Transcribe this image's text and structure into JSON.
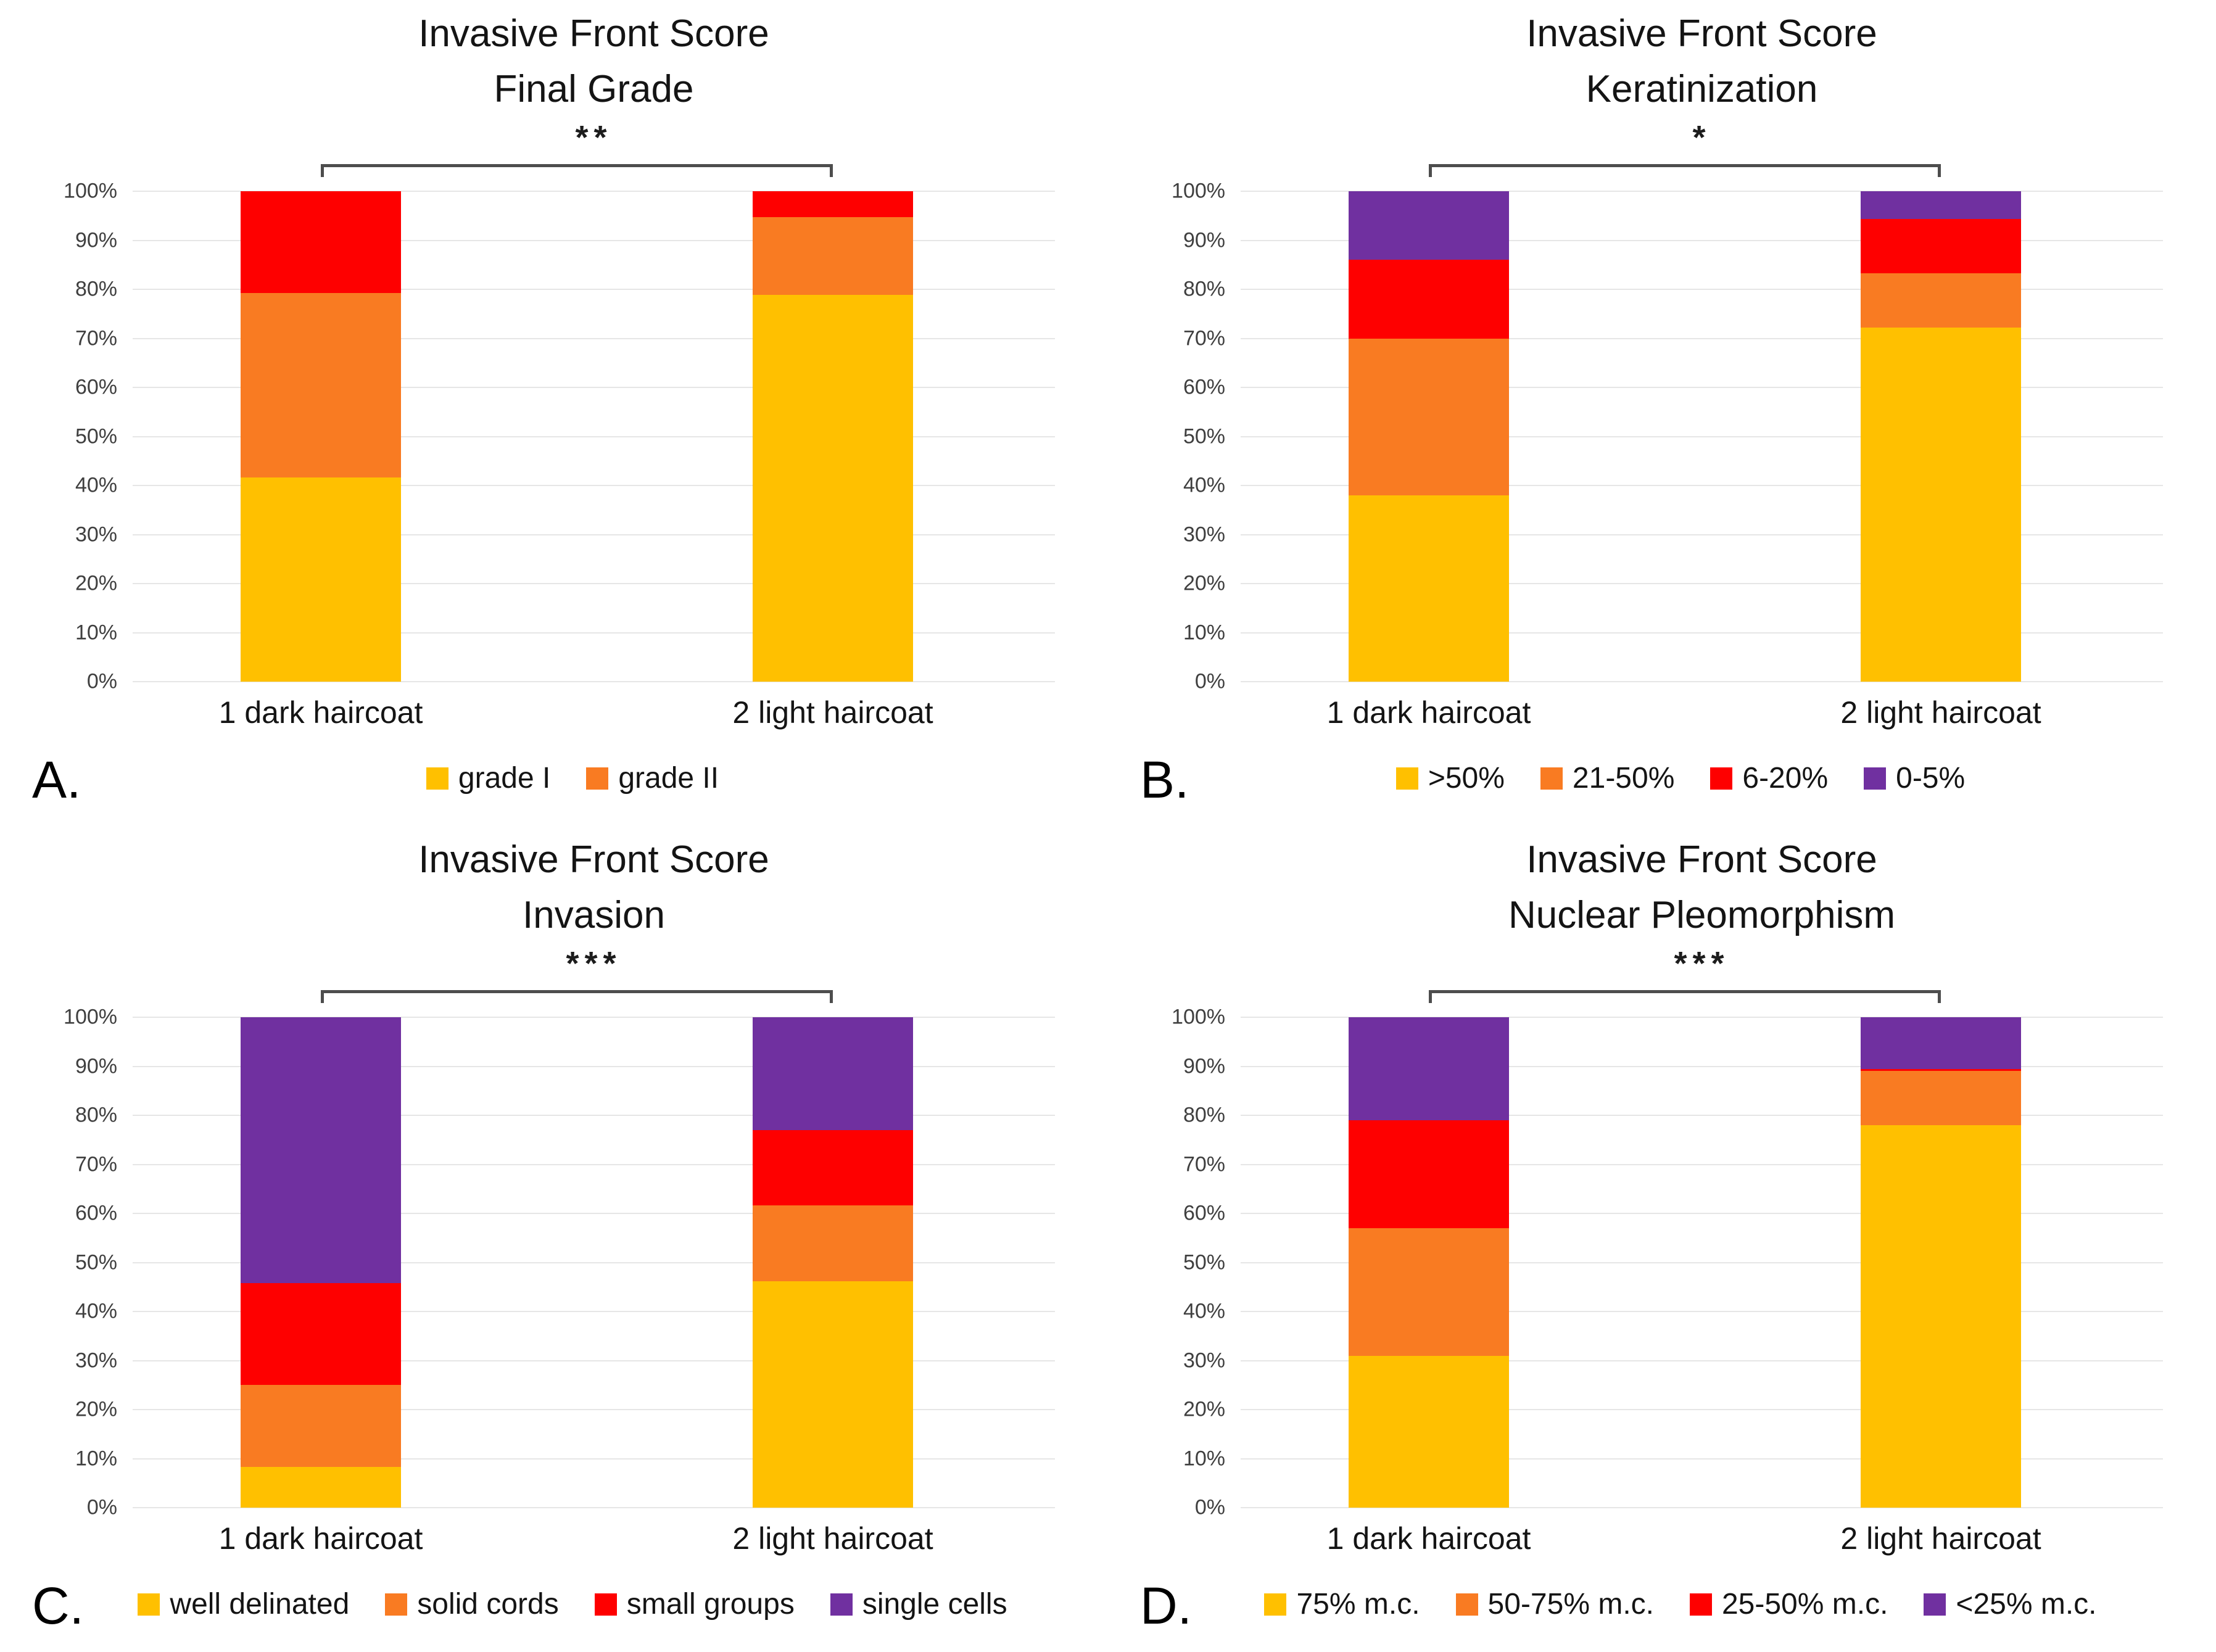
{
  "y_ticks": [
    "100%",
    "90%",
    "80%",
    "70%",
    "60%",
    "50%",
    "40%",
    "30%",
    "20%",
    "10%",
    "0%"
  ],
  "colors": {
    "yellow": "#FFC000",
    "orange": "#F97B22",
    "red": "#FE0000",
    "purple": "#7030A0",
    "gridline": "#E6E6E6",
    "bracket": "#4D4D4D",
    "tick_text": "#3F3F3F",
    "body_text": "#141414"
  },
  "chart_data": [
    {
      "label": "A.",
      "type": "bar",
      "subtype": "100pct_stacked",
      "title": "Invasive Front Score",
      "subtitle": "Final Grade",
      "significance": "**",
      "ylim": [
        0,
        100
      ],
      "grid": true,
      "legend_position": "bottom",
      "categories": [
        "1 dark haircoat",
        "2 light haircoat"
      ],
      "series": [
        {
          "name": "grade I",
          "color": "#FFC000",
          "in_legend": true,
          "values": [
            41.7,
            78.9
          ]
        },
        {
          "name": "grade II",
          "color": "#F97B22",
          "in_legend": true,
          "values": [
            37.5,
            15.8
          ]
        },
        {
          "name": null,
          "color": "#FE0000",
          "in_legend": false,
          "values": [
            20.8,
            5.3
          ]
        }
      ]
    },
    {
      "label": "B.",
      "type": "bar",
      "subtype": "100pct_stacked",
      "title": "Invasive Front Score",
      "subtitle": "Keratinization",
      "significance": "*",
      "ylim": [
        0,
        100
      ],
      "grid": true,
      "legend_position": "bottom",
      "categories": [
        "1 dark haircoat",
        "2 light haircoat"
      ],
      "series": [
        {
          "name": ">50%",
          "color": "#FFC000",
          "in_legend": true,
          "values": [
            38.0,
            72.2
          ]
        },
        {
          "name": "21-50%",
          "color": "#F97B22",
          "in_legend": true,
          "values": [
            32.0,
            11.1
          ]
        },
        {
          "name": "6-20%",
          "color": "#FE0000",
          "in_legend": true,
          "values": [
            16.0,
            11.1
          ]
        },
        {
          "name": "0-5%",
          "color": "#7030A0",
          "in_legend": true,
          "values": [
            14.0,
            5.6
          ]
        }
      ]
    },
    {
      "label": "C.",
      "type": "bar",
      "subtype": "100pct_stacked",
      "title": "Invasive Front Score",
      "subtitle": "Invasion",
      "significance": "***",
      "ylim": [
        0,
        100
      ],
      "grid": true,
      "legend_position": "bottom",
      "categories": [
        "1 dark haircoat",
        "2 light haircoat"
      ],
      "series": [
        {
          "name": "well delinated",
          "color": "#FFC000",
          "in_legend": true,
          "values": [
            8.3,
            46.2
          ]
        },
        {
          "name": "solid cords",
          "color": "#F97B22",
          "in_legend": true,
          "values": [
            16.7,
            15.4
          ]
        },
        {
          "name": "small groups",
          "color": "#FE0000",
          "in_legend": true,
          "values": [
            20.8,
            15.4
          ]
        },
        {
          "name": "single cells",
          "color": "#7030A0",
          "in_legend": true,
          "values": [
            54.2,
            23.0
          ]
        }
      ]
    },
    {
      "label": "D.",
      "type": "bar",
      "subtype": "100pct_stacked",
      "title": "Invasive Front Score",
      "subtitle": "Nuclear Pleomorphism",
      "significance": "***",
      "ylim": [
        0,
        100
      ],
      "grid": true,
      "legend_position": "bottom",
      "categories": [
        "1 dark haircoat",
        "2 light haircoat"
      ],
      "series": [
        {
          "name": "75% m.c.",
          "color": "#FFC000",
          "in_legend": true,
          "values": [
            31.0,
            78.0
          ]
        },
        {
          "name": "50-75% m.c.",
          "color": "#F97B22",
          "in_legend": true,
          "values": [
            26.0,
            11.0
          ]
        },
        {
          "name": "25-50% m.c.",
          "color": "#FE0000",
          "in_legend": true,
          "values": [
            22.0,
            0.5
          ]
        },
        {
          "name": "<25% m.c.",
          "color": "#7030A0",
          "in_legend": true,
          "values": [
            21.0,
            10.5
          ]
        }
      ]
    }
  ]
}
